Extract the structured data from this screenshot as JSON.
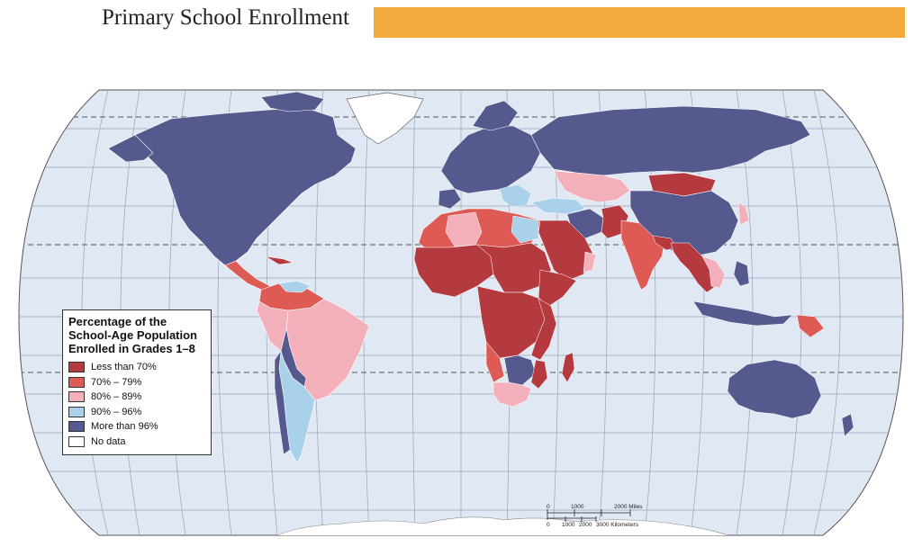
{
  "title": "Primary School Enrollment",
  "colors": {
    "ocean": "#dfe8f3",
    "title_bar": "#f2aa3c",
    "less_than_70": "#b43a3f",
    "p70_79": "#dd5a55",
    "p80_89": "#f3b0bb",
    "p90_96": "#a9d2ea",
    "more_than_96": "#56598e",
    "no_data": "#ffffff"
  },
  "legend": {
    "title_lines": [
      "Percentage of the",
      "School-Age Population",
      "Enrolled in Grades 1–8"
    ],
    "items": [
      {
        "label": "Less than 70%",
        "color": "#b43a3f"
      },
      {
        "label": "70% – 79%",
        "color": "#dd5a55"
      },
      {
        "label": "80% – 89%",
        "color": "#f3b0bb"
      },
      {
        "label": "90% – 96%",
        "color": "#a9d2ea"
      },
      {
        "label": "More than 96%",
        "color": "#56598e"
      },
      {
        "label": "No data",
        "color": "#ffffff"
      }
    ]
  },
  "scale": {
    "miles_labels": [
      "0",
      "1000",
      "2000 Miles"
    ],
    "km_labels": [
      "0",
      "1000",
      "2000",
      "3000 Kilometers"
    ]
  }
}
